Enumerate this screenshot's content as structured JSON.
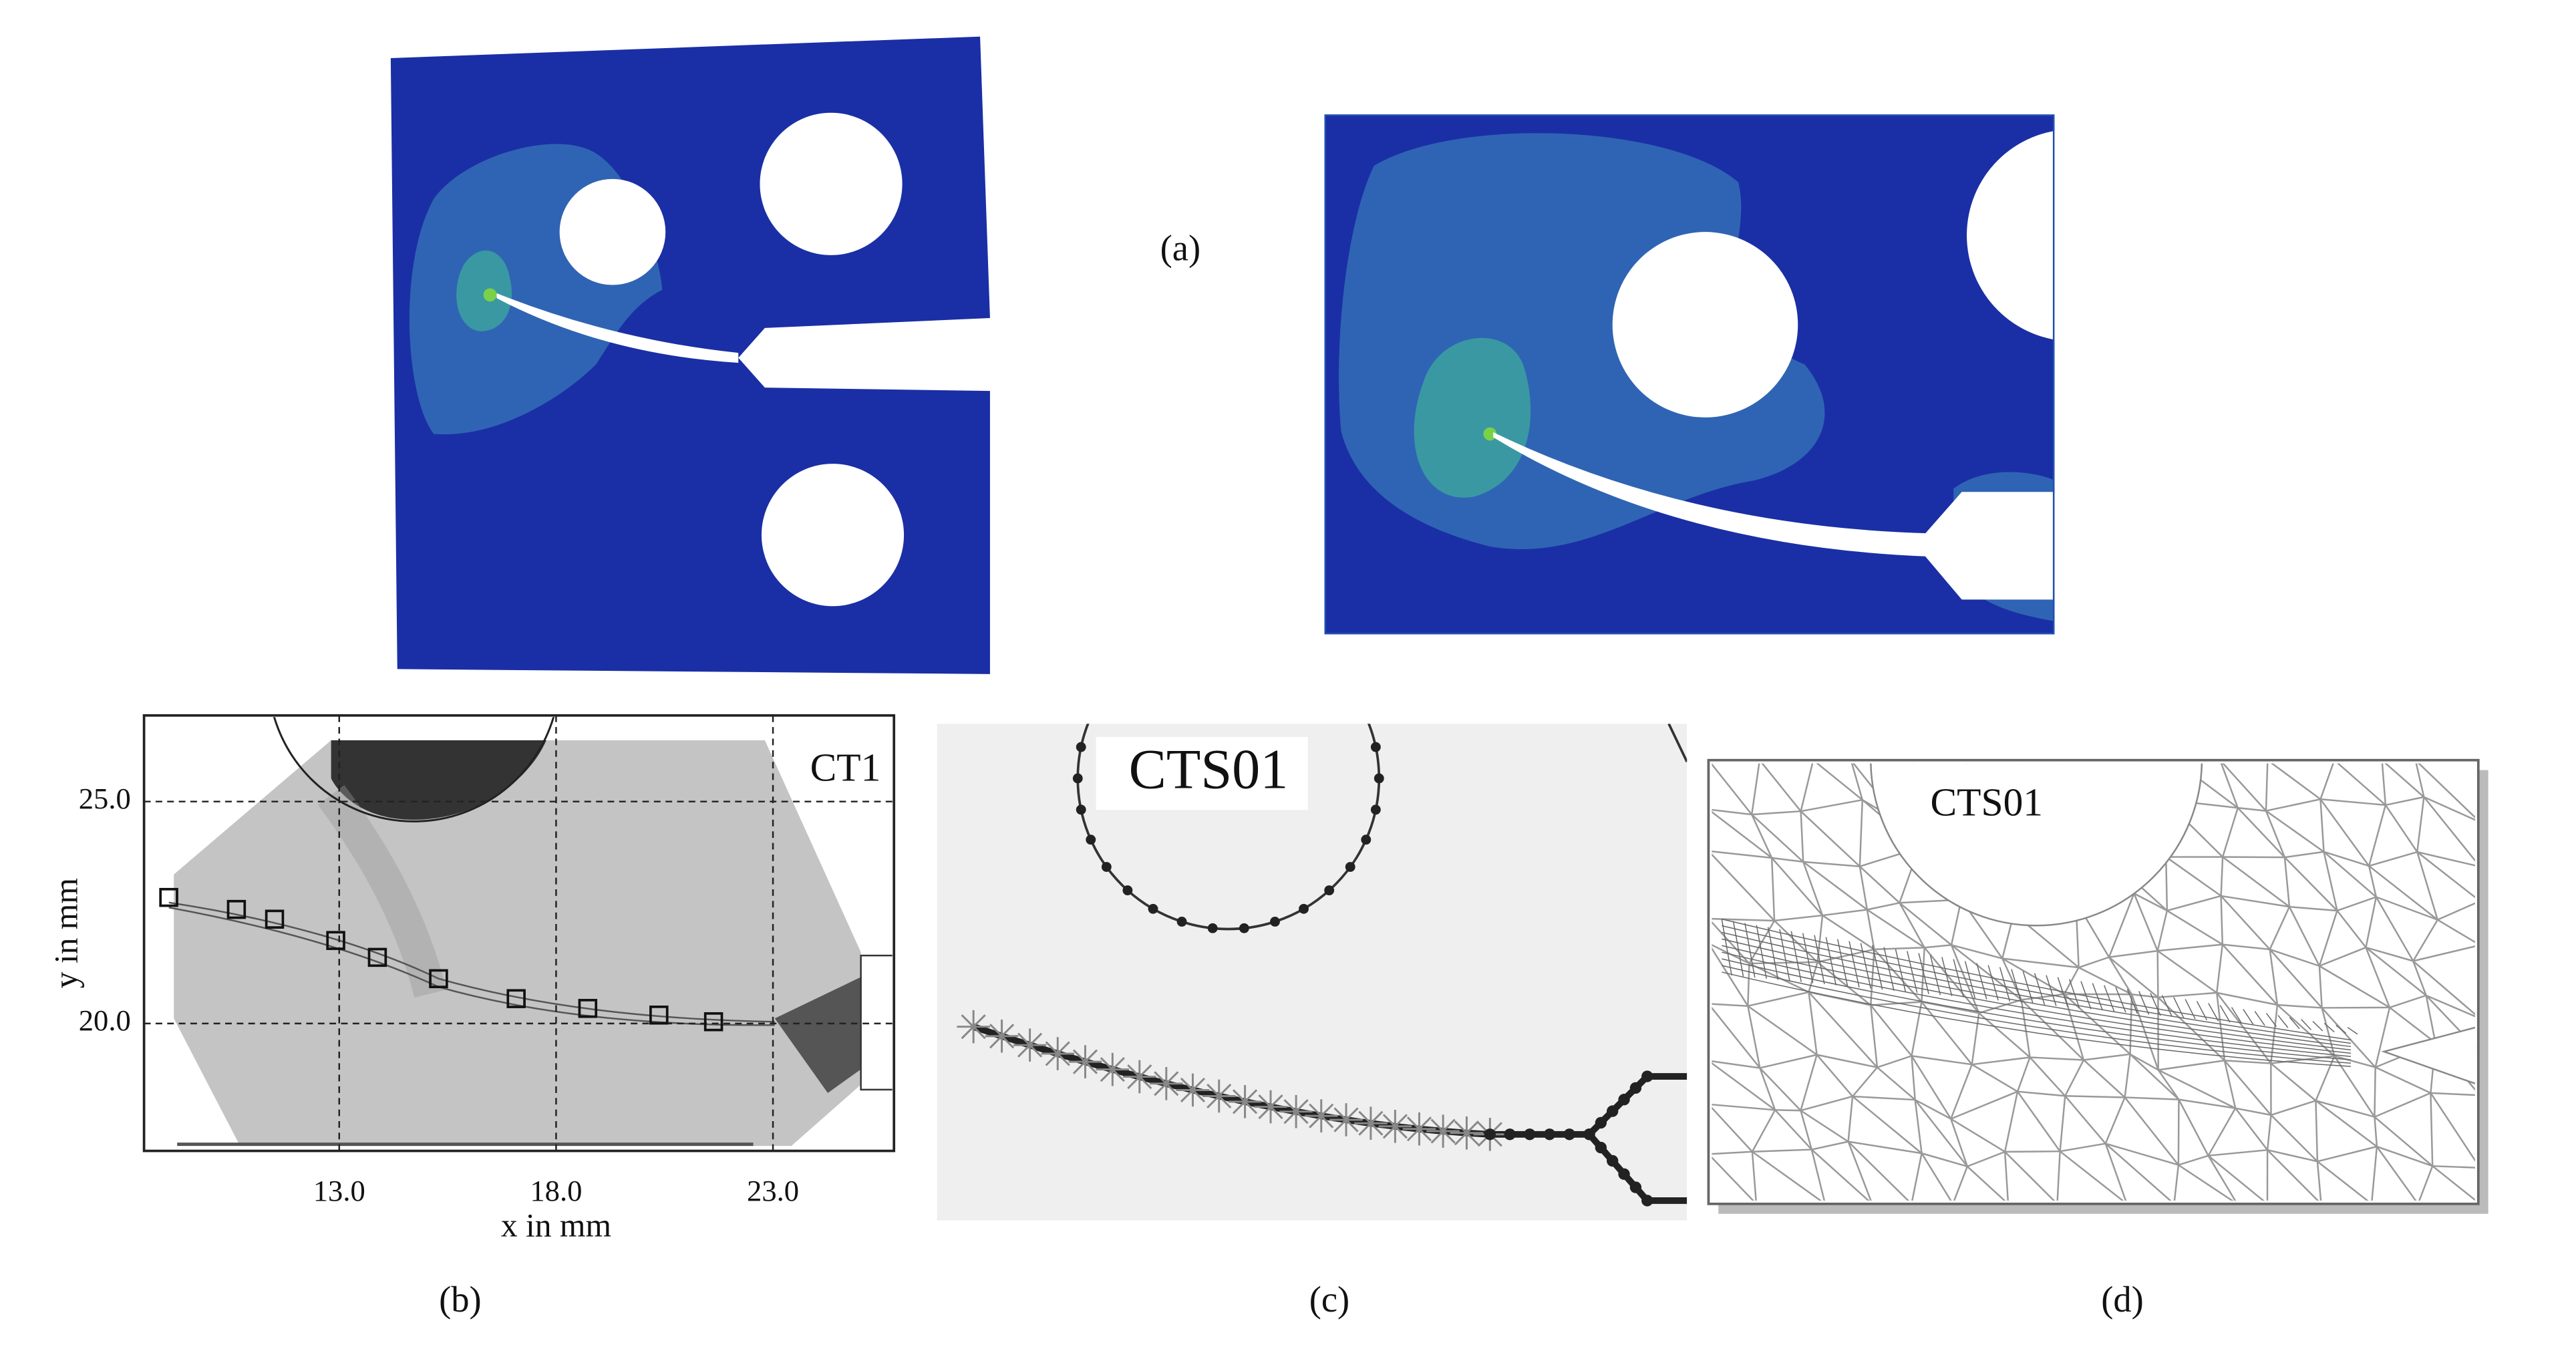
{
  "figure": {
    "a": {
      "label": "(a)"
    },
    "b": {
      "label": "(b)",
      "chart": {
        "type": "scatter",
        "title": "CT1",
        "x_label": "x in mm",
        "y_label": "y in mm",
        "x": [
          9.07,
          10.63,
          11.51,
          12.92,
          13.88,
          15.29,
          17.08,
          18.73,
          20.37,
          21.63
        ],
        "values": [
          22.84,
          22.57,
          22.35,
          21.87,
          21.49,
          21.01,
          20.56,
          20.34,
          20.19,
          20.04
        ],
        "xlim": [
          8.5,
          25.79
        ],
        "ylim": [
          17.13,
          26.94
        ],
        "xticks": [
          {
            "value": 13,
            "label": "13.0"
          },
          {
            "value": 18,
            "label": "18.0"
          },
          {
            "value": 23,
            "label": "23.0"
          }
        ],
        "yticks": [
          {
            "value": 20,
            "label": "20.0"
          },
          {
            "value": 25,
            "label": "25.0"
          }
        ],
        "grid": true
      }
    },
    "c": {
      "label": "(c)",
      "title": "CTS01"
    },
    "d": {
      "label": "(d)",
      "title": "CTS01"
    }
  }
}
